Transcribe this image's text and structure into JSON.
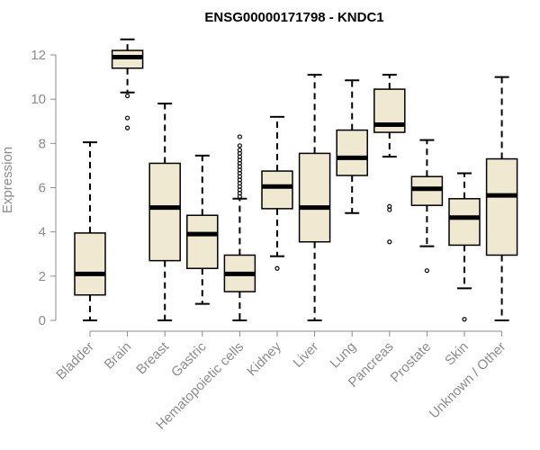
{
  "chart_data": {
    "type": "boxplot",
    "title": "ENSG00000171798 - KNDC1",
    "xlabel": "",
    "ylabel": "Expression",
    "ylim": [
      0,
      12
    ],
    "yticks": [
      0,
      2,
      4,
      6,
      8,
      10,
      12
    ],
    "box_fill": "#efe9d2",
    "categories": [
      "Bladder",
      "Brain",
      "Breast",
      "Gastric",
      "Hematopoietic cells",
      "Kidney",
      "Liver",
      "Lung",
      "Pancreas",
      "Prostate",
      "Skin",
      "Unknown / Other"
    ],
    "boxes": [
      {
        "label": "Bladder",
        "min": 0.0,
        "q1": 1.15,
        "median": 2.1,
        "q3": 3.95,
        "max": 8.05,
        "outliers": []
      },
      {
        "label": "Brain",
        "min": 10.3,
        "q1": 11.4,
        "median": 11.9,
        "q3": 12.2,
        "max": 12.7,
        "outliers": [
          10.15,
          9.15,
          8.7
        ]
      },
      {
        "label": "Breast",
        "min": 0.0,
        "q1": 2.7,
        "median": 5.1,
        "q3": 7.1,
        "max": 9.8,
        "outliers": []
      },
      {
        "label": "Gastric",
        "min": 0.75,
        "q1": 2.35,
        "median": 3.9,
        "q3": 4.75,
        "max": 7.45,
        "outliers": []
      },
      {
        "label": "Hematopoietic cells",
        "min": 0.0,
        "q1": 1.3,
        "median": 2.1,
        "q3": 2.95,
        "max": 5.5,
        "outliers": [
          5.6,
          5.75,
          5.9,
          6.05,
          6.2,
          6.35,
          6.5,
          6.65,
          6.8,
          6.95,
          7.1,
          7.25,
          7.4,
          7.55,
          7.7,
          7.9,
          8.3
        ]
      },
      {
        "label": "Kidney",
        "min": 2.9,
        "q1": 5.05,
        "median": 6.05,
        "q3": 6.75,
        "max": 9.2,
        "outliers": [
          2.35
        ]
      },
      {
        "label": "Liver",
        "min": 0.0,
        "q1": 3.55,
        "median": 5.1,
        "q3": 7.55,
        "max": 11.1,
        "outliers": []
      },
      {
        "label": "Lung",
        "min": 4.85,
        "q1": 6.55,
        "median": 7.35,
        "q3": 8.6,
        "max": 10.85,
        "outliers": []
      },
      {
        "label": "Pancreas",
        "min": 7.4,
        "q1": 8.5,
        "median": 8.85,
        "q3": 10.45,
        "max": 11.1,
        "outliers": [
          5.15,
          5.0,
          3.55
        ]
      },
      {
        "label": "Prostate",
        "min": 3.35,
        "q1": 5.2,
        "median": 5.95,
        "q3": 6.5,
        "max": 8.15,
        "outliers": [
          2.25
        ]
      },
      {
        "label": "Skin",
        "min": 1.45,
        "q1": 3.4,
        "median": 4.65,
        "q3": 5.5,
        "max": 6.65,
        "outliers": [
          0.05
        ]
      },
      {
        "label": "Unknown / Other",
        "min": 0.0,
        "q1": 2.95,
        "median": 5.65,
        "q3": 7.3,
        "max": 11.0,
        "outliers": []
      }
    ]
  }
}
